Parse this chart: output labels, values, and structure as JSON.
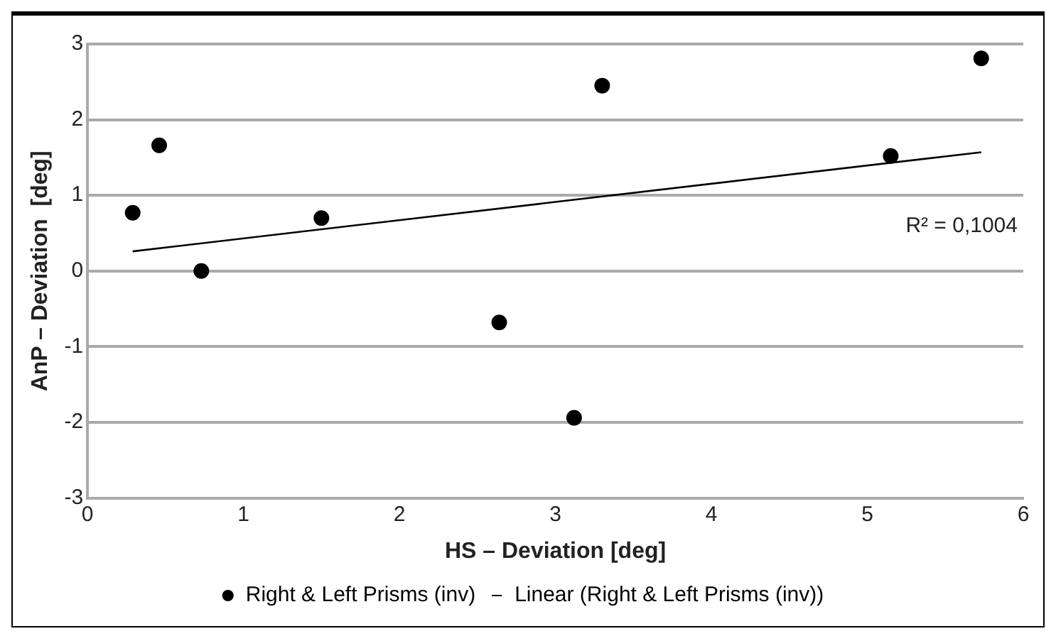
{
  "chart_data": {
    "type": "scatter",
    "xlabel": "HS – Deviation [deg]",
    "ylabel": "AnP – Deviation  [deg]",
    "series": [
      {
        "name": "Right & Left Prisms (inv)",
        "color": "#000000",
        "x": [
          0.29,
          0.46,
          0.73,
          1.5,
          2.64,
          3.12,
          3.3,
          5.15,
          5.73
        ],
        "values": [
          0.77,
          1.66,
          0,
          0.7,
          -0.68,
          -1.94,
          2.45,
          1.52,
          2.81
        ]
      },
      {
        "name": "Linear (Right & Left Prisms (inv))",
        "type": "line",
        "color": "#000000",
        "marker": "none",
        "x": [
          0.29,
          5.73
        ],
        "values": [
          0.26,
          1.57
        ]
      }
    ],
    "xlim": [
      0,
      6
    ],
    "xticks": [
      0,
      1,
      2,
      3,
      4,
      5,
      6
    ],
    "ylim": [
      -3,
      3
    ],
    "yticks": [
      -3,
      -2,
      -1,
      0,
      1,
      2,
      3
    ],
    "grid": "y",
    "legend": "bottom",
    "marker": "circle",
    "annotations": [
      "R² = 0,1004"
    ]
  }
}
